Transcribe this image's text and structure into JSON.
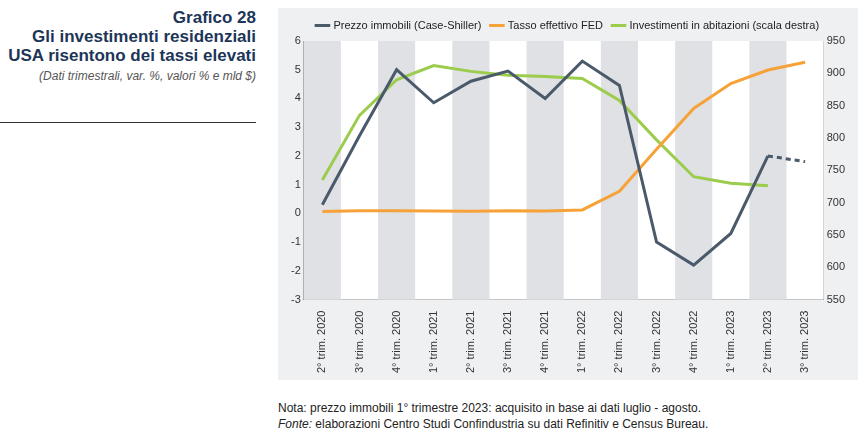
{
  "chart_data": {
    "type": "line",
    "title": [
      "Grafico 28",
      "Gli investimenti residenziali",
      "USA risentono dei tassi elevati"
    ],
    "subtitle": "(Dati trimestrali, var. %, valori % e mld $)",
    "notes": [
      "Nota: prezzo immobili 1° trimestre 2023: acquisito in base ai dati luglio - agosto.",
      "Fonte: elaborazioni Centro Studi Confindustria su dati Refinitiv e Census Bureau."
    ],
    "categories": [
      "2° trim. 2020",
      "3° trim. 2020",
      "4° trim. 2020",
      "1° trim. 2021",
      "2° trim. 2021",
      "3° trim. 2021",
      "4° trim. 2021",
      "1° trim. 2022",
      "2° trim. 2022",
      "3° trim. 2022",
      "4° trim. 2022",
      "1° trim. 2023",
      "2° trim. 2023",
      "3° trim. 2023"
    ],
    "series": [
      {
        "name": "Prezzo immobili (Case-Shiller)",
        "color": "#4b5a6b",
        "line_style": "solid",
        "values": [
          0.3,
          2.7,
          5.0,
          3.85,
          4.6,
          4.95,
          4.0,
          5.3,
          4.45,
          -1.0,
          -1.8,
          -0.7,
          2.0,
          null
        ]
      },
      {
        "name": "Prezzo immobili (Case-Shiller)",
        "color": "#4b5a6b",
        "line_style": "dashed",
        "values": [
          null,
          null,
          null,
          null,
          null,
          null,
          null,
          null,
          null,
          null,
          null,
          null,
          2.0,
          1.8
        ]
      },
      {
        "name": "Tasso effettivo FED",
        "color": "#f7a239",
        "line_style": "solid",
        "values": [
          0.06,
          0.09,
          0.09,
          0.08,
          0.07,
          0.09,
          0.08,
          0.12,
          0.77,
          2.23,
          3.65,
          4.52,
          4.99,
          5.26
        ]
      },
      {
        "name": "Investimenti in abitazioni (scala destra)",
        "color": "#9ccc4c",
        "line_style": "solid",
        "axis": "y2",
        "values": [
          735,
          835,
          890,
          912,
          903,
          897,
          895,
          892,
          858,
          797,
          740,
          730,
          726,
          null
        ]
      }
    ],
    "ylim": [
      -3,
      6
    ],
    "yticks": [
      -3,
      -2,
      -1,
      0,
      1,
      2,
      3,
      4,
      5,
      6
    ],
    "y2lim": [
      550,
      950
    ],
    "y2ticks": [
      550,
      600,
      650,
      700,
      750,
      800,
      850,
      900,
      950
    ],
    "grid": false,
    "legend": "top"
  }
}
